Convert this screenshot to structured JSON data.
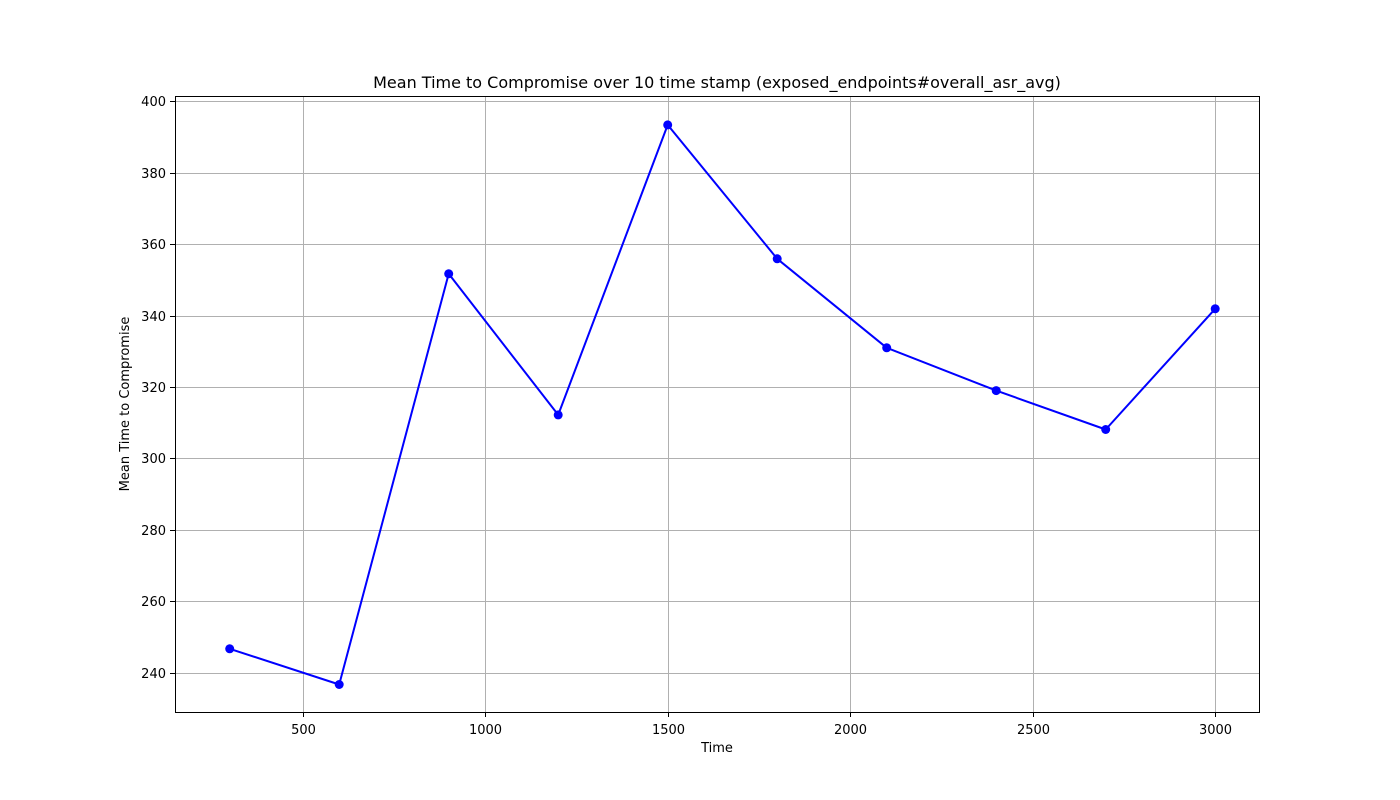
{
  "chart_data": {
    "type": "line",
    "title": "Mean Time to Compromise over 10 time stamp (exposed_endpoints#overall_asr_avg)",
    "xlabel": "Time",
    "ylabel": "Mean Time to Compromise",
    "xlim": [
      150,
      3120
    ],
    "ylim": [
      229,
      401.5
    ],
    "xticks": [
      500,
      1000,
      1500,
      2000,
      2500,
      3000
    ],
    "yticks": [
      240,
      260,
      280,
      300,
      320,
      340,
      360,
      380,
      400
    ],
    "grid": true,
    "series": [
      {
        "color": "#0000ff",
        "marker": "circle",
        "points": [
          {
            "x": 300,
            "y": 246.7
          },
          {
            "x": 600,
            "y": 236.7
          },
          {
            "x": 900,
            "y": 351.7
          },
          {
            "x": 1200,
            "y": 312.2
          },
          {
            "x": 1500,
            "y": 393.4
          },
          {
            "x": 1800,
            "y": 355.9
          },
          {
            "x": 2100,
            "y": 331.0
          },
          {
            "x": 2400,
            "y": 319.0
          },
          {
            "x": 2700,
            "y": 308.1
          },
          {
            "x": 3000,
            "y": 341.9
          }
        ]
      }
    ]
  }
}
